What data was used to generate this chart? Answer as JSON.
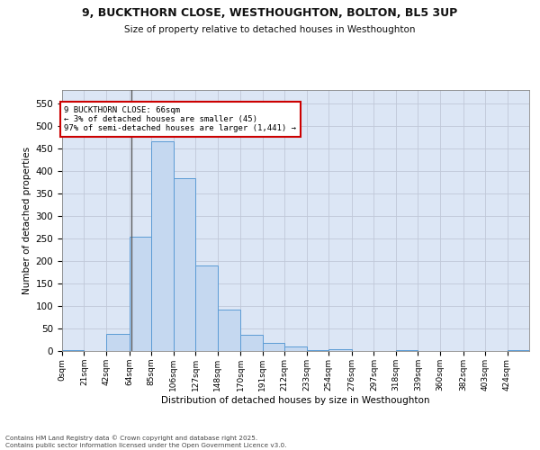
{
  "title_line1": "9, BUCKTHORN CLOSE, WESTHOUGHTON, BOLTON, BL5 3UP",
  "title_line2": "Size of property relative to detached houses in Westhoughton",
  "xlabel": "Distribution of detached houses by size in Westhoughton",
  "ylabel": "Number of detached properties",
  "categories": [
    "0sqm",
    "21sqm",
    "42sqm",
    "64sqm",
    "85sqm",
    "106sqm",
    "127sqm",
    "148sqm",
    "170sqm",
    "191sqm",
    "212sqm",
    "233sqm",
    "254sqm",
    "276sqm",
    "297sqm",
    "318sqm",
    "339sqm",
    "360sqm",
    "382sqm",
    "403sqm",
    "424sqm"
  ],
  "values": [
    2,
    0,
    38,
    255,
    467,
    384,
    191,
    93,
    37,
    18,
    10,
    3,
    4,
    0,
    0,
    2,
    0,
    0,
    0,
    0,
    2
  ],
  "bar_color": "#c5d8f0",
  "bar_edge_color": "#5b9bd5",
  "grid_color": "#c0c8d8",
  "background_color": "#dce6f5",
  "annotation_text": "9 BUCKTHORN CLOSE: 66sqm\n← 3% of detached houses are smaller (45)\n97% of semi-detached houses are larger (1,441) →",
  "annotation_box_color": "#ffffff",
  "annotation_box_edge": "#cc0000",
  "vline_x": 66,
  "footer": "Contains HM Land Registry data © Crown copyright and database right 2025.\nContains public sector information licensed under the Open Government Licence v3.0.",
  "ylim": [
    0,
    580
  ],
  "yticks": [
    0,
    50,
    100,
    150,
    200,
    250,
    300,
    350,
    400,
    450,
    500,
    550
  ],
  "bin_edges": [
    0,
    21,
    42,
    64,
    85,
    106,
    127,
    148,
    170,
    191,
    212,
    233,
    254,
    276,
    297,
    318,
    339,
    360,
    382,
    403,
    424,
    445
  ]
}
